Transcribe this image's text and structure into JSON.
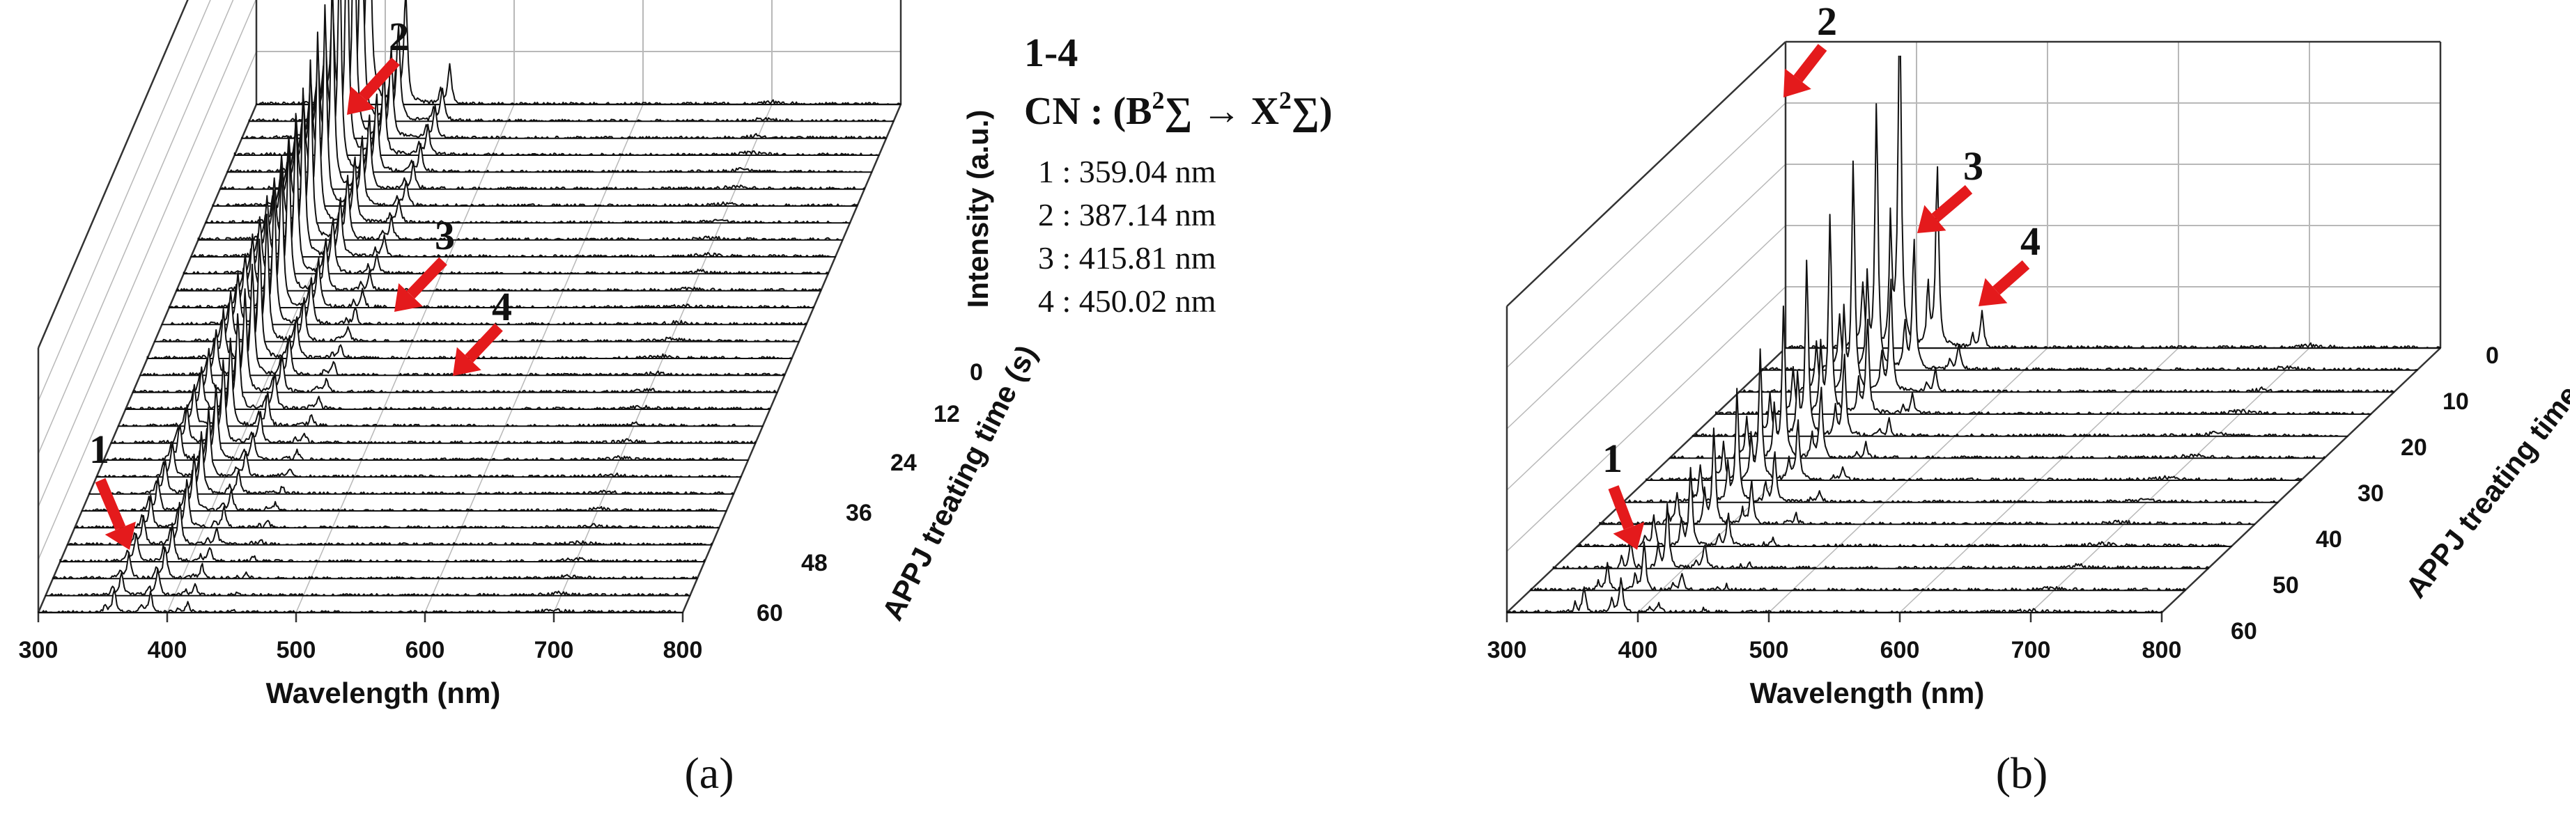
{
  "chart_data": [
    {
      "panel_label": "(a)",
      "type": "waterfall-3d",
      "xlabel": "Wavelength (nm)",
      "ylabel": "APPJ treating time (s)",
      "zlabel": "Intensity (a.u.)",
      "xlim": [
        300,
        800
      ],
      "x_ticks": [
        "300",
        "400",
        "500",
        "600",
        "700",
        "800"
      ],
      "y_ticks": [
        "0",
        "12",
        "24",
        "36",
        "48",
        "60"
      ],
      "times_s": [
        0,
        2,
        4,
        6,
        8,
        10,
        12,
        14,
        16,
        18,
        20,
        22,
        24,
        26,
        28,
        30,
        32,
        34,
        36,
        38,
        40,
        42,
        44,
        46,
        48,
        50,
        52,
        54,
        56,
        58,
        60
      ],
      "peaks_nm": [
        359.04,
        387.14,
        415.81,
        450.02
      ],
      "peak_intensity_at_0s": [
        0.3,
        1.0,
        0.34,
        0.12
      ],
      "peak_intensity_at_60s": [
        0.07,
        0.06,
        0.03,
        0.01
      ],
      "peak_labels": [
        "1",
        "2",
        "3",
        "4"
      ],
      "legend": {
        "title": "1-4",
        "species": "CN : (B",
        "sup1": "2",
        "mid": "∑ → X",
        "sup2": "2",
        "end": "∑)",
        "entries": [
          "1 : 359.04 nm",
          "2 : 387.14 nm",
          "3 : 415.81 nm",
          "4 : 450.02 nm"
        ]
      }
    },
    {
      "panel_label": "(b)",
      "type": "waterfall-3d",
      "xlabel": "Wavelength (nm)",
      "ylabel": "APPJ treating time (s)",
      "xlim": [
        300,
        800
      ],
      "x_ticks": [
        "300",
        "400",
        "500",
        "600",
        "700",
        "800"
      ],
      "y_ticks": [
        "0",
        "10",
        "20",
        "30",
        "40",
        "50",
        "60"
      ],
      "times_s": [
        0,
        5,
        10,
        15,
        20,
        25,
        30,
        35,
        40,
        45,
        50,
        55,
        60
      ],
      "peaks_nm": [
        359.04,
        387.14,
        415.81,
        450.02
      ],
      "peak_intensity_at_0s": [
        0.18,
        1.0,
        0.5,
        0.1
      ],
      "peak_intensity_at_60s": [
        0.07,
        0.1,
        0.03,
        0.01
      ],
      "peak_labels": [
        "1",
        "2",
        "3",
        "4"
      ]
    }
  ],
  "colors": {
    "line": "#111111",
    "frame": "#333333",
    "grid": "#b8b8b8",
    "arrow": "#e41a1c"
  }
}
